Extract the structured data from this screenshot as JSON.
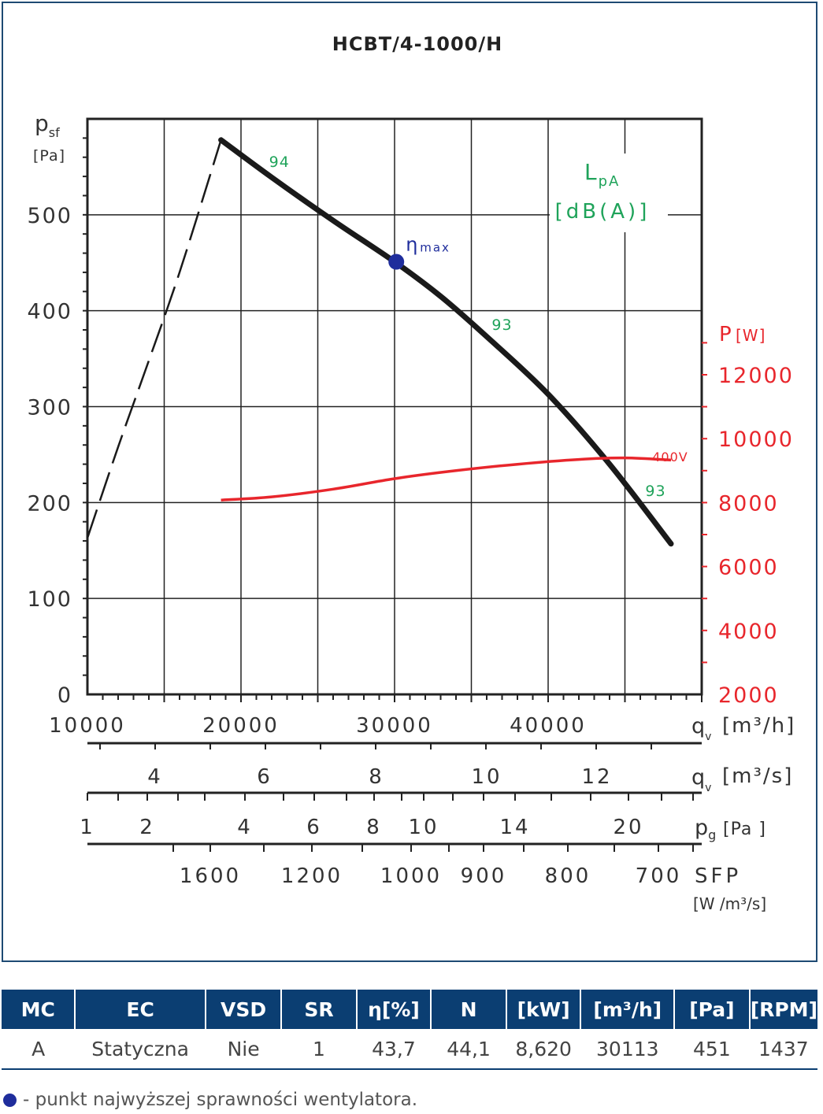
{
  "chart_data": {
    "type": "line",
    "title": "HCBT/4-1000/H",
    "y_label": "p",
    "y_label_sub": "sf",
    "y_unit": "[Pa]",
    "y_ticks": [
      "0",
      "100",
      "200",
      "300",
      "400",
      "500"
    ],
    "ylim": [
      0,
      600
    ],
    "x_label": "q",
    "x_label_sub": "v",
    "x_unit": "[m³/h]",
    "x_ticks": [
      "10000",
      "20000",
      "30000",
      "40000"
    ],
    "xlim": [
      10000,
      50000
    ],
    "x2_label": "q",
    "x2_sub": "v",
    "x2_unit": "[m³/s]",
    "x2_ticks": [
      "4",
      "6",
      "8",
      "10",
      "12"
    ],
    "pg_label": "p",
    "pg_sub": "g",
    "pg_unit": "[Pa ]",
    "pg_ticks": [
      "1",
      "2",
      "4",
      "6",
      "8",
      "10",
      "14",
      "20"
    ],
    "sfp_label": "SFP",
    "sfp_unit": "[W /m³/s]",
    "sfp_ticks": [
      "1600",
      "1200",
      "1000",
      "900",
      "800",
      "700"
    ],
    "p_label": "P",
    "p_unit": "[W]",
    "p_ticks": [
      "2000",
      "4000",
      "6000",
      "8000",
      "10000",
      "12000"
    ],
    "p_range": [
      2000,
      12000
    ],
    "lpa_label": "L",
    "lpa_sub": "pA",
    "lpa_unit": "[dB(A)]",
    "eta_label": "η",
    "eta_sub": "max",
    "power_curve_label": "400V",
    "colors": {
      "pressure": "#1a1a1a",
      "power": "#e8262c",
      "noise": "#1fa35a",
      "eta": "#1f2d9c",
      "grid": "#222222"
    },
    "series": [
      {
        "role": "pressure-curve",
        "x": [
          18700,
          22000,
          26000,
          30000,
          33000,
          36000,
          40000,
          44000,
          48000
        ],
        "y": [
          578,
          539,
          494,
          451,
          415,
          373,
          313,
          240,
          157
        ]
      },
      {
        "role": "pressure-stall-dashed",
        "x": [
          10000,
          12000,
          14000,
          16000,
          18700
        ],
        "y": [
          163,
          258,
          348,
          440,
          578
        ]
      },
      {
        "role": "power-curve",
        "x": [
          18700,
          22000,
          26000,
          30000,
          34000,
          38000,
          42000,
          45000,
          48000
        ],
        "y": [
          8080,
          8180,
          8420,
          8750,
          9000,
          9200,
          9350,
          9400,
          9330
        ]
      }
    ],
    "noise_labels": [
      {
        "x": 22500,
        "y": 550,
        "text": "94"
      },
      {
        "x": 37000,
        "y": 380,
        "text": "93"
      },
      {
        "x": 47000,
        "y": 207,
        "text": "93"
      }
    ],
    "eta_point": {
      "x": 30113,
      "y": 451
    }
  },
  "table": {
    "headers": [
      "MC",
      "EC",
      "VSD",
      "SR",
      "η[%]",
      "N",
      "[kW]",
      "[m³/h]",
      "[Pa]",
      "[RPM]"
    ],
    "row": [
      "A",
      "Statyczna",
      "Nie",
      "1",
      "43,7",
      "44,1",
      "8,620",
      "30113",
      "451",
      "1437"
    ]
  },
  "footnote": "- punkt najwyższej sprawności wentylatora."
}
